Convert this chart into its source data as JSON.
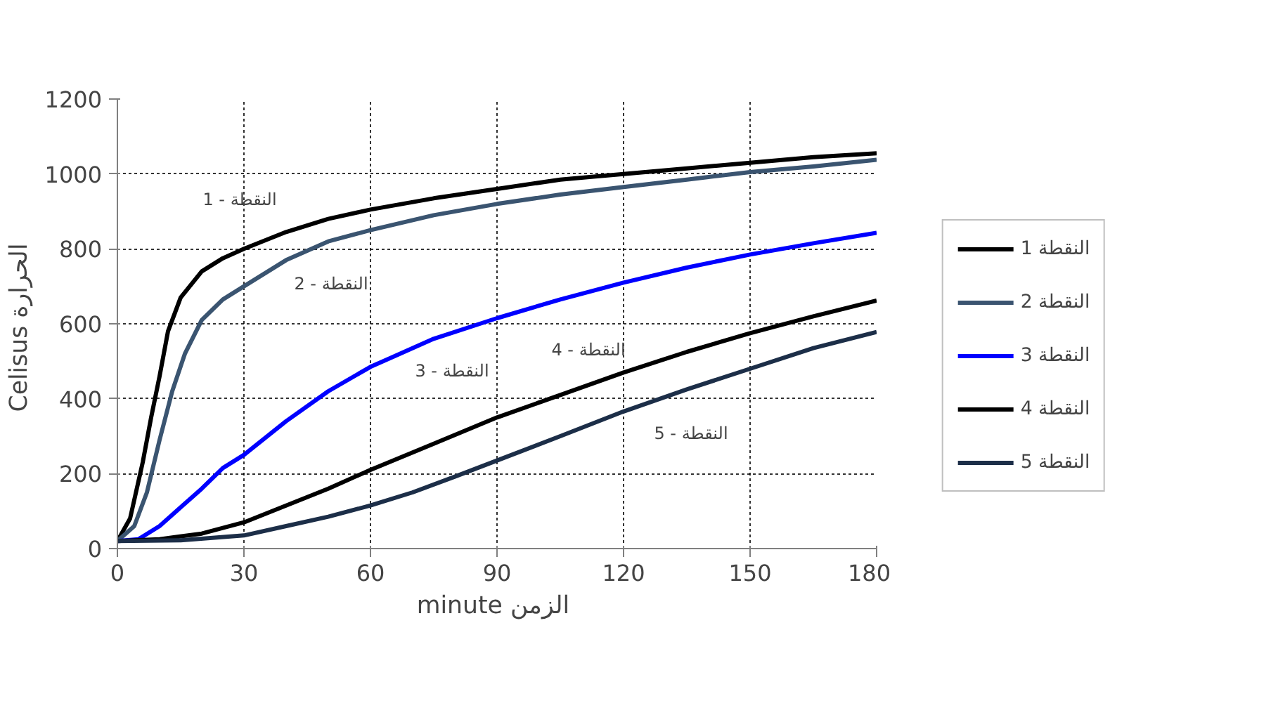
{
  "chart_data": {
    "type": "line",
    "xlabel": "minute  الزمن",
    "ylabel": "Celisus  الحرارة",
    "xlim": [
      0,
      180
    ],
    "xticks": [
      0,
      30,
      60,
      90,
      120,
      150,
      180
    ],
    "ylim": [
      0,
      1200
    ],
    "yticks": [
      0,
      200,
      400,
      600,
      800,
      1000,
      1200
    ],
    "grid": true,
    "legend": "right",
    "line_style": "solid",
    "marker": "none",
    "series": [
      {
        "name": "1 النقطة",
        "color": "#000000",
        "x": [
          0,
          3,
          6,
          8,
          10,
          12,
          15,
          20,
          25,
          30,
          40,
          50,
          60,
          75,
          90,
          105,
          120,
          135,
          150,
          165,
          180
        ],
        "values": [
          20,
          80,
          230,
          350,
          460,
          580,
          670,
          740,
          775,
          800,
          845,
          880,
          905,
          935,
          960,
          985,
          1000,
          1015,
          1030,
          1045,
          1055
        ]
      },
      {
        "name": "2 النقطة",
        "color": "#3a5470",
        "x": [
          0,
          4,
          7,
          10,
          13,
          16,
          20,
          25,
          30,
          40,
          50,
          60,
          75,
          90,
          105,
          120,
          135,
          150,
          165,
          180
        ],
        "values": [
          20,
          60,
          150,
          290,
          420,
          520,
          610,
          665,
          700,
          770,
          820,
          850,
          890,
          920,
          945,
          965,
          985,
          1005,
          1020,
          1038
        ]
      },
      {
        "name": "3 النقطة",
        "color": "#0000ff",
        "x": [
          0,
          5,
          10,
          15,
          20,
          25,
          30,
          40,
          50,
          60,
          75,
          90,
          105,
          120,
          135,
          150,
          165,
          180
        ],
        "values": [
          20,
          25,
          60,
          110,
          160,
          215,
          250,
          340,
          420,
          485,
          560,
          615,
          665,
          710,
          750,
          785,
          815,
          843
        ]
      },
      {
        "name": "4 النقطة",
        "color": "#000000",
        "x": [
          0,
          10,
          20,
          30,
          40,
          50,
          60,
          75,
          90,
          105,
          120,
          135,
          150,
          165,
          180
        ],
        "values": [
          20,
          25,
          40,
          70,
          115,
          160,
          210,
          280,
          350,
          410,
          470,
          525,
          575,
          620,
          662
        ]
      },
      {
        "name": "5 النقطة",
        "color": "#1c2e48",
        "x": [
          0,
          15,
          30,
          40,
          50,
          60,
          70,
          80,
          90,
          105,
          120,
          135,
          150,
          165,
          180
        ],
        "values": [
          20,
          22,
          35,
          60,
          85,
          115,
          150,
          192,
          235,
          300,
          366,
          425,
          480,
          535,
          578
        ]
      }
    ],
    "annotations": [
      "1 - النقطة",
      "2 - النقطة",
      "3 - النقطة",
      "4 - النقطة",
      "5 - النقطة"
    ]
  }
}
